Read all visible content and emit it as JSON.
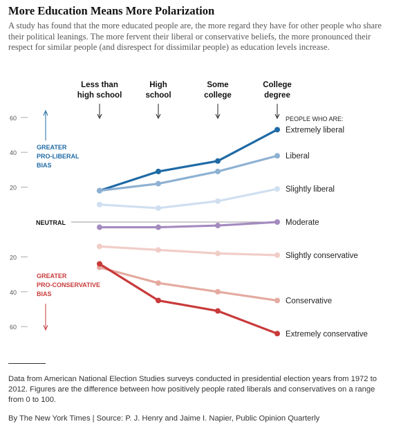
{
  "title": "More Education Means More Polarization",
  "subtitle": "A study has found that the more educated people are, the more regard they have for other people who share their political leanings. The more fervent their liberal or conservative beliefs, the more pronounced their respect for similar people (and disrespect for dissimilar people) as education levels increase.",
  "chart_data": {
    "type": "line",
    "categories": [
      [
        "Less than",
        "high school"
      ],
      [
        "High",
        "school"
      ],
      [
        "Some",
        "college"
      ],
      [
        "College",
        "degree"
      ]
    ],
    "y_ticks": [
      {
        "value": 60,
        "label": "60"
      },
      {
        "value": 40,
        "label": "40"
      },
      {
        "value": 20,
        "label": "20"
      },
      {
        "value": -20,
        "label": "20"
      },
      {
        "value": -40,
        "label": "40"
      },
      {
        "value": -60,
        "label": "60"
      }
    ],
    "ylim": [
      -65,
      65
    ],
    "neutral_label": "NEUTRAL",
    "legend_header": "PEOPLE WHO ARE:",
    "liberal_bias_label": [
      "GREATER",
      "PRO-LIBERAL",
      "BIAS"
    ],
    "conservative_bias_label": [
      "GREATER",
      "PRO-CONSERVATIVE",
      "BIAS"
    ],
    "series": [
      {
        "name": "Extremely liberal",
        "values": [
          18,
          29,
          35,
          53
        ],
        "color": "#1f6aa5"
      },
      {
        "name": "Liberal",
        "values": [
          18,
          22,
          29,
          38
        ],
        "color": "#8eb1d3"
      },
      {
        "name": "Slightly liberal",
        "values": [
          10,
          8,
          12,
          19
        ],
        "color": "#cfdff0"
      },
      {
        "name": "Moderate",
        "values": [
          -3,
          -3,
          -2,
          0
        ],
        "color": "#a48bbf"
      },
      {
        "name": "Slightly conservative",
        "values": [
          -14,
          -16,
          -18,
          -19
        ],
        "color": "#f1cdc8"
      },
      {
        "name": "Conservative",
        "values": [
          -26,
          -35,
          -40,
          -45
        ],
        "color": "#e4aaa0"
      },
      {
        "name": "Extremely conservative",
        "values": [
          -24,
          -45,
          -51,
          -64
        ],
        "color": "#c93a3a"
      }
    ]
  },
  "note": "Data from American National Election Studies surveys conducted in presidential election years from 1972 to 2012. Figures are the difference between how positively people rated liberals and conservatives on a range from 0 to 100.",
  "credit": "By The New York Times | Source: P. J. Henry and Jaime I. Napier, Public Opinion Quarterly"
}
